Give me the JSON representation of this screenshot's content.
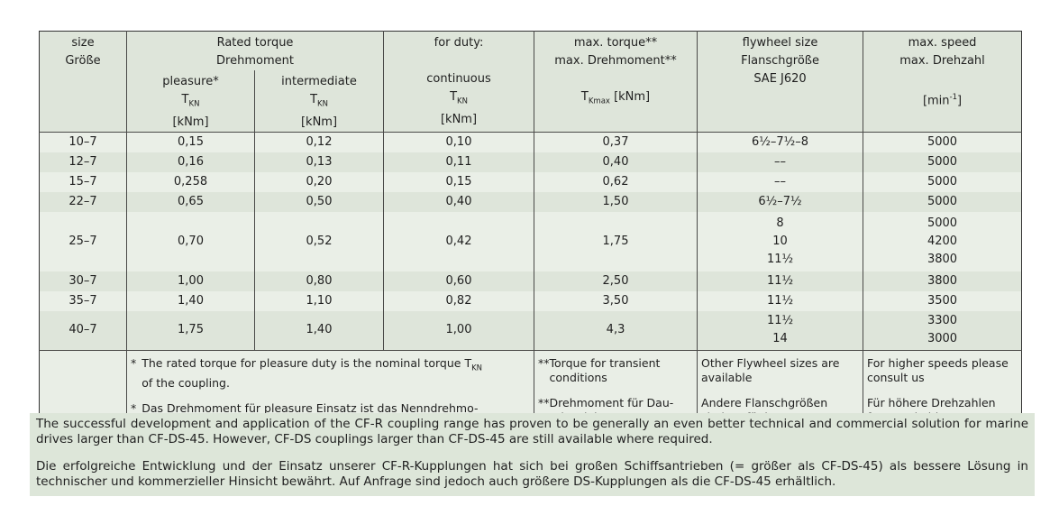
{
  "colors": {
    "row_light": "#eaefe7",
    "row_dark": "#dee5da",
    "header_bg": "#dee5da",
    "footnote_bg": "#e9eee6",
    "notes_bg": "#dde6d9",
    "border": "#4a4a48"
  },
  "table": {
    "header": {
      "size": "size\nGröße",
      "rated_torque": "Rated torque\nDrehmoment",
      "pleasure": "pleasure*\nT_{KN}\n[kNm]",
      "intermediate": "intermediate\nT_{KN}\n[kNm]",
      "for_duty": "for duty:\n\ncontinuous\nT_{KN}\n[kNm]",
      "max_torque": "max. torque**\nmax. Drehmoment**\n\nT_{Kmax} [kNm]",
      "flywheel": "flywheel size\nFlanschgröße\nSAE J620",
      "max_speed": "max. speed\nmax. Drehzahl\n\n[min^{-1}]"
    },
    "rows": [
      {
        "size": "10–7",
        "pleasure": "0,15",
        "intermediate": "0,12",
        "continuous": "0,10",
        "max_torque": "0,37",
        "flywheel": "6½–7½–8",
        "max_speed": "5000"
      },
      {
        "size": "12–7",
        "pleasure": "0,16",
        "intermediate": "0,13",
        "continuous": "0,11",
        "max_torque": "0,40",
        "flywheel": "––",
        "max_speed": "5000"
      },
      {
        "size": "15–7",
        "pleasure": "0,258",
        "intermediate": "0,20",
        "continuous": "0,15",
        "max_torque": "0,62",
        "flywheel": "––",
        "max_speed": "5000"
      },
      {
        "size": "22–7",
        "pleasure": "0,65",
        "intermediate": "0,50",
        "continuous": "0,40",
        "max_torque": "1,50",
        "flywheel": "6½–7½",
        "max_speed": "5000"
      },
      {
        "size": "25–7",
        "pleasure": "0,70",
        "intermediate": "0,52",
        "continuous": "0,42",
        "max_torque": "1,75",
        "flywheel": "8\n10\n11½",
        "max_speed": "5000\n4200\n3800"
      },
      {
        "size": "30–7",
        "pleasure": "1,00",
        "intermediate": "0,80",
        "continuous": "0,60",
        "max_torque": "2,50",
        "flywheel": "11½",
        "max_speed": "3800"
      },
      {
        "size": "35–7",
        "pleasure": "1,40",
        "intermediate": "1,10",
        "continuous": "0,82",
        "max_torque": "3,50",
        "flywheel": "11½",
        "max_speed": "3500"
      },
      {
        "size": "40–7",
        "pleasure": "1,75",
        "intermediate": "1,40",
        "continuous": "1,00",
        "max_torque": "4,3",
        "flywheel": "11½\n14",
        "max_speed": "3300\n3000"
      }
    ],
    "footnotes": {
      "rated": {
        "items": [
          {
            "marker": "*",
            "text": "The rated torque for pleasure duty is the nominal torque T_{KN}\nof the coupling."
          },
          {
            "marker": "*",
            "text": "Das Drehmoment für pleasure Einsatz ist das Nenndrehmo-\nment T_{KN} der Kupplung."
          }
        ]
      },
      "torque": {
        "items": [
          {
            "marker": "**",
            "text": "Torque for transient\nconditions"
          },
          {
            "marker": "**",
            "text": "Drehmoment für Dau-\nerbetrieb"
          }
        ]
      },
      "flywheel": {
        "items": [
          {
            "text": "Other Flywheel sizes are\navailable"
          },
          {
            "text": "Andere Flanschgrößen\nsind verfügbar"
          }
        ]
      },
      "speed": {
        "items": [
          {
            "text": "For higher speeds please\nconsult us"
          },
          {
            "text": "Für höhere Drehzahlen\nfragen Sie bitte an"
          }
        ]
      }
    }
  },
  "notes": {
    "en": "The successful development and application of the CF-R coupling range has proven to be generally an even better technical and commercial solution for marine drives larger than CF-DS-45. However, CF-DS couplings larger than CF-DS-45 are still available where required.",
    "de": "Die erfolgreiche Entwicklung und der Einsatz unserer CF-R-Kupplungen hat sich bei großen Schiffsantrieben (= größer als CF-DS-45) als bessere Lösung in technischer und kommerzieller Hinsicht bewährt. Auf Anfrage sind jedoch auch größere DS-Kupplungen als die CF-DS-45 erhältlich."
  }
}
